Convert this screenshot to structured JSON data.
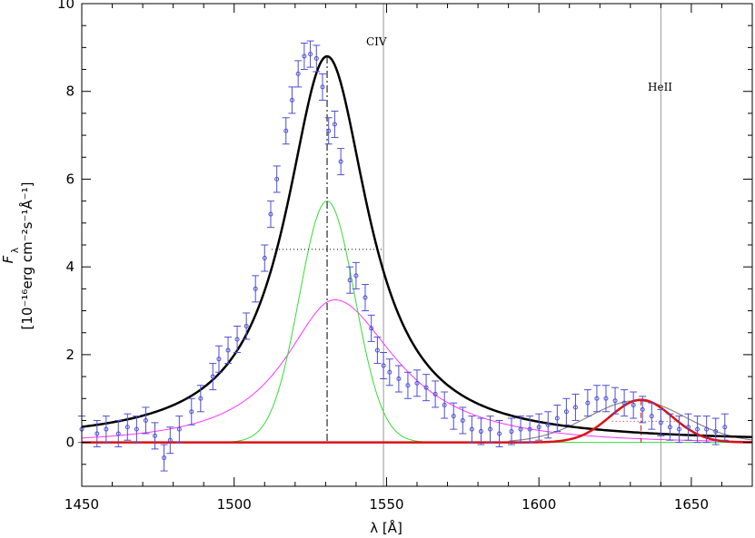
{
  "chart_data": {
    "type": "scatter",
    "xlabel": "λ [Å]",
    "ylabel_main": "F",
    "ylabel_sub": "λ",
    "ylabel_units": "[10⁻¹⁶erg cm⁻²s⁻¹Å⁻¹]",
    "xlim": [
      1450,
      1670
    ],
    "ylim": [
      -1,
      10
    ],
    "xticks": [
      1450,
      1500,
      1550,
      1600,
      1650
    ],
    "yticks": [
      0,
      2,
      4,
      6,
      8,
      10
    ],
    "grid": false,
    "reference_lines": [
      {
        "label": "CIV",
        "x": 1549
      },
      {
        "label": "HeII",
        "x": 1640
      }
    ],
    "components": {
      "civ_total_peak_x": 1530.5,
      "civ_total_peak_y": 8.8,
      "civ_half_max_y": 4.4,
      "civ_half_max_x_range": [
        1512.3,
        1548.9
      ],
      "green_gaussian": {
        "center": 1530.5,
        "amplitude": 5.5,
        "sigma": 9.1
      },
      "magenta_component": {
        "center": 1533,
        "amplitude": 3.25
      },
      "heii_peak_x": 1633.5,
      "heii_peak_y": 0.97,
      "heii_half_max_y": 0.48,
      "heii_half_max_x_range": [
        1624,
        1645
      ]
    },
    "series": [
      {
        "kind": "data_points",
        "x": [
          1450,
          1455,
          1458,
          1462,
          1465,
          1468,
          1471,
          1474,
          1477,
          1479,
          1482,
          1486,
          1489,
          1493,
          1495,
          1498,
          1501,
          1504,
          1507,
          1510,
          1512,
          1514,
          1517,
          1519,
          1521,
          1523,
          1525,
          1527,
          1529,
          1531,
          1533,
          1535,
          1538,
          1540,
          1543,
          1545,
          1547,
          1549,
          1551,
          1554,
          1557,
          1560,
          1563,
          1566,
          1569,
          1572,
          1575,
          1578,
          1581,
          1584,
          1587,
          1591,
          1594,
          1597,
          1600,
          1603,
          1606,
          1609,
          1612,
          1616,
          1619,
          1622,
          1625,
          1628,
          1631,
          1634,
          1637,
          1640,
          1643,
          1646,
          1649,
          1652,
          1655,
          1658,
          1661
        ],
        "y": [
          0.3,
          0.2,
          0.3,
          0.2,
          0.35,
          0.3,
          0.5,
          0.15,
          -0.35,
          0.05,
          0.3,
          0.7,
          1.0,
          1.5,
          1.9,
          2.1,
          2.35,
          2.65,
          3.5,
          4.2,
          5.2,
          6.0,
          7.1,
          7.8,
          8.4,
          8.8,
          8.85,
          8.75,
          8.1,
          7.1,
          7.25,
          6.4,
          3.7,
          3.8,
          3.3,
          2.6,
          2.1,
          1.75,
          1.6,
          1.45,
          1.3,
          1.35,
          1.25,
          1.1,
          0.85,
          0.6,
          0.5,
          0.3,
          0.25,
          0.3,
          0.2,
          0.25,
          0.3,
          0.3,
          0.35,
          0.4,
          0.55,
          0.7,
          0.8,
          0.9,
          1.0,
          1.0,
          0.95,
          0.9,
          0.85,
          0.75,
          0.6,
          0.45,
          0.35,
          0.3,
          0.35,
          0.3,
          0.3,
          0.25,
          0.35
        ],
        "error": 0.3
      }
    ]
  }
}
